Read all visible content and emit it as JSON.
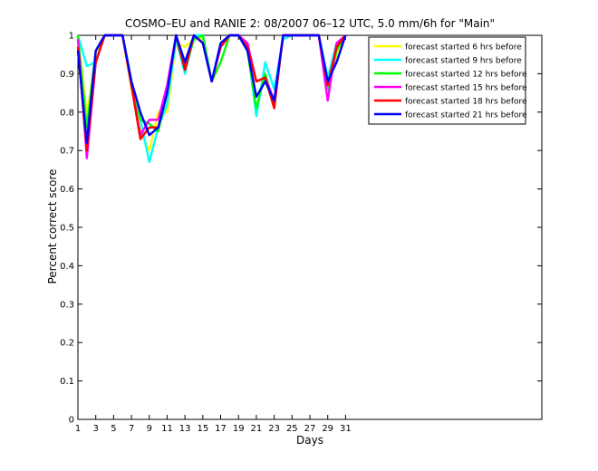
{
  "chart_data": {
    "type": "line",
    "title": "COSMO–EU and RANIE 2: 08/2007 06–12 UTC, 5.0 mm/6h for \"Main\"",
    "xlabel": "Days",
    "ylabel": "Percent correct score",
    "xlim": [
      1,
      53
    ],
    "ylim": [
      0,
      1
    ],
    "xticks": [
      1,
      3,
      5,
      7,
      9,
      11,
      13,
      15,
      17,
      19,
      21,
      23,
      25,
      27,
      29,
      31
    ],
    "yticks": [
      0,
      0.1,
      0.2,
      0.3,
      0.4,
      0.5,
      0.6,
      0.7,
      0.8,
      0.9,
      1
    ],
    "ytick_labels": [
      "0",
      "0.1",
      "0.2",
      "0.3",
      "0.4",
      "0.5",
      "0.6",
      "0.7",
      "0.8",
      "0.9",
      "1"
    ],
    "grid": false,
    "legend_position": "top-right",
    "x": [
      1,
      2,
      3,
      4,
      5,
      6,
      7,
      8,
      9,
      10,
      11,
      12,
      13,
      14,
      15,
      16,
      17,
      18,
      19,
      20,
      21,
      22,
      23,
      24,
      25,
      26,
      27,
      28,
      29,
      30,
      31
    ],
    "series": [
      {
        "name": "forecast started 6 hrs before",
        "color": "#ffff00",
        "values": [
          1.0,
          0.79,
          0.95,
          1.0,
          1.0,
          1.0,
          0.86,
          0.75,
          0.7,
          0.8,
          0.8,
          0.98,
          0.97,
          0.99,
          0.99,
          0.88,
          0.97,
          1.0,
          1.0,
          0.97,
          0.84,
          0.88,
          0.82,
          1.0,
          1.0,
          1.0,
          1.0,
          1.0,
          0.87,
          0.95,
          1.0
        ]
      },
      {
        "name": "forecast started 9 hrs before",
        "color": "#00ffff",
        "values": [
          1.0,
          0.92,
          0.93,
          1.0,
          1.0,
          1.0,
          0.88,
          0.78,
          0.67,
          0.76,
          0.82,
          0.99,
          0.9,
          1.0,
          1.0,
          0.88,
          0.97,
          1.0,
          1.0,
          0.97,
          0.79,
          0.93,
          0.86,
          0.99,
          1.0,
          1.0,
          1.0,
          1.0,
          0.89,
          0.98,
          1.0
        ]
      },
      {
        "name": "forecast started 12 hrs before",
        "color": "#00ff00",
        "values": [
          1.0,
          0.76,
          0.96,
          1.0,
          1.0,
          1.0,
          0.88,
          0.78,
          0.77,
          0.75,
          0.85,
          1.0,
          0.91,
          0.99,
          1.0,
          0.88,
          0.93,
          1.0,
          1.0,
          0.96,
          0.81,
          0.9,
          0.82,
          1.0,
          1.0,
          1.0,
          1.0,
          1.0,
          0.86,
          0.96,
          1.0
        ]
      },
      {
        "name": "forecast started 15 hrs before",
        "color": "#ff00ff",
        "values": [
          0.99,
          0.68,
          0.93,
          1.0,
          1.0,
          1.0,
          0.87,
          0.74,
          0.78,
          0.78,
          0.87,
          1.0,
          0.92,
          1.0,
          0.98,
          0.88,
          0.97,
          1.0,
          1.0,
          0.98,
          0.88,
          0.89,
          0.83,
          1.0,
          1.0,
          1.0,
          1.0,
          1.0,
          0.83,
          0.98,
          1.0
        ]
      },
      {
        "name": "forecast started 18 hrs before",
        "color": "#ff0000",
        "values": [
          0.97,
          0.7,
          0.93,
          1.0,
          1.0,
          1.0,
          0.87,
          0.73,
          0.76,
          0.76,
          0.85,
          1.0,
          0.91,
          1.0,
          0.98,
          0.88,
          0.97,
          1.0,
          1.0,
          0.97,
          0.88,
          0.89,
          0.81,
          1.0,
          1.0,
          1.0,
          1.0,
          1.0,
          0.87,
          0.97,
          1.0
        ]
      },
      {
        "name": "forecast started 21 hrs before",
        "color": "#0000ff",
        "values": [
          0.96,
          0.72,
          0.96,
          1.0,
          1.0,
          1.0,
          0.88,
          0.8,
          0.74,
          0.76,
          0.85,
          1.0,
          0.93,
          1.0,
          0.98,
          0.88,
          0.98,
          1.0,
          1.0,
          0.96,
          0.84,
          0.88,
          0.83,
          1.0,
          1.0,
          1.0,
          1.0,
          1.0,
          0.88,
          0.93,
          1.0
        ]
      }
    ]
  }
}
